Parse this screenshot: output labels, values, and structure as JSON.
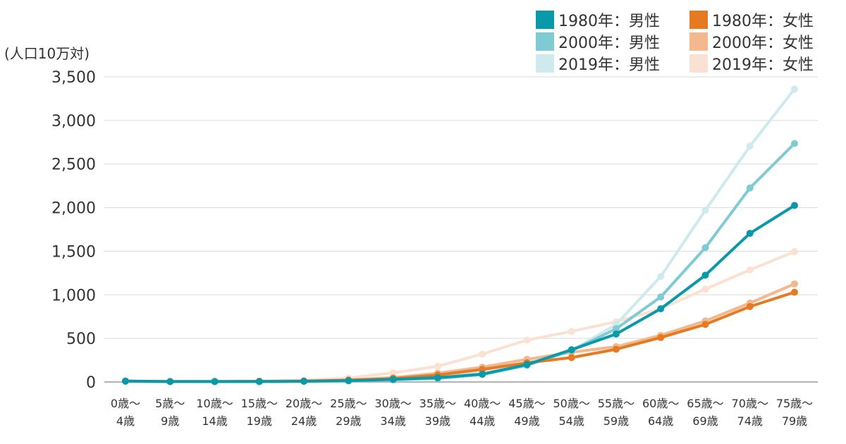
{
  "unit_label": "(人口10万対)",
  "chart_data": {
    "type": "line",
    "ylim": [
      0,
      3500
    ],
    "yticks": [
      "0",
      "500",
      "1,000",
      "1,500",
      "2,000",
      "2,500",
      "3,000",
      "3,500"
    ],
    "ytick_values": [
      0,
      500,
      1000,
      1500,
      2000,
      2500,
      3000,
      3500
    ],
    "grid": true,
    "legend_position": "top-right",
    "categories": [
      [
        "0歳～",
        "4歳"
      ],
      [
        "5歳～",
        "9歳"
      ],
      [
        "10歳～",
        "14歳"
      ],
      [
        "15歳～",
        "19歳"
      ],
      [
        "20歳～",
        "24歳"
      ],
      [
        "25歳～",
        "29歳"
      ],
      [
        "30歳～",
        "34歳"
      ],
      [
        "35歳～",
        "39歳"
      ],
      [
        "40歳～",
        "44歳"
      ],
      [
        "45歳～",
        "49歳"
      ],
      [
        "50歳～",
        "54歳"
      ],
      [
        "55歳～",
        "59歳"
      ],
      [
        "60歳～",
        "64歳"
      ],
      [
        "65歳～",
        "69歳"
      ],
      [
        "70歳～",
        "74歳"
      ],
      [
        "75歳～",
        "79歳"
      ]
    ],
    "series": [
      {
        "name": "1980年：男性",
        "color": "#0a99a8",
        "values": [
          10,
          5,
          5,
          5,
          8,
          15,
          30,
          50,
          90,
          200,
          370,
          550,
          840,
          1225,
          1705,
          2025
        ]
      },
      {
        "name": "2000年：男性",
        "color": "#7fcbd3",
        "values": [
          8,
          5,
          5,
          5,
          8,
          12,
          25,
          40,
          85,
          190,
          360,
          610,
          975,
          1540,
          2225,
          2735
        ]
      },
      {
        "name": "2019年：男性",
        "color": "#cfeaee",
        "values": [
          8,
          5,
          5,
          5,
          10,
          15,
          30,
          55,
          110,
          220,
          360,
          660,
          1210,
          1970,
          2705,
          3360
        ]
      },
      {
        "name": "1980年：女性",
        "color": "#e67a22",
        "values": [
          10,
          5,
          5,
          8,
          10,
          20,
          40,
          80,
          145,
          220,
          280,
          375,
          510,
          660,
          865,
          1030
        ]
      },
      {
        "name": "2000年：女性",
        "color": "#f3b88e",
        "values": [
          10,
          5,
          5,
          8,
          12,
          25,
          50,
          100,
          170,
          260,
          340,
          405,
          535,
          700,
          905,
          1125
        ]
      },
      {
        "name": "2019年：女性",
        "color": "#fbe1d1",
        "values": [
          12,
          5,
          8,
          10,
          20,
          45,
          105,
          180,
          320,
          480,
          580,
          690,
          840,
          1065,
          1285,
          1495
        ]
      }
    ]
  }
}
